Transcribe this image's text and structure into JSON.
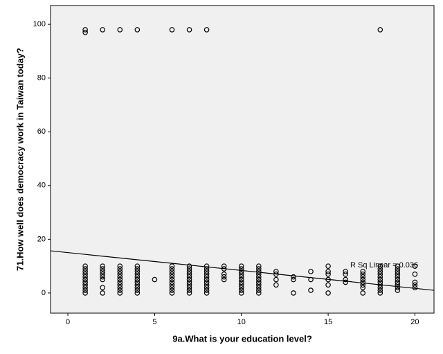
{
  "chart_data": {
    "type": "scatter",
    "x_label": "9a.What is your education level?",
    "y_label": "71.How well does democracy work in Taiwan today?",
    "annotation": "R Sq Linear = 0.036",
    "xlim": [
      -1,
      21.1
    ],
    "ylim": [
      -7.5,
      107
    ],
    "xticks": [
      0,
      5,
      10,
      15,
      20
    ],
    "yticks": [
      0,
      20,
      40,
      60,
      80,
      100
    ],
    "grid": false,
    "color": "#000000",
    "fit_line": {
      "x": [
        -1,
        21.1
      ],
      "y": [
        15.7,
        1.0
      ]
    },
    "x": [
      1,
      1,
      1,
      1,
      1,
      1,
      1,
      1,
      1,
      1,
      1,
      1,
      1,
      2,
      2,
      2,
      2,
      2,
      2,
      2,
      2,
      2,
      3,
      3,
      3,
      3,
      3,
      3,
      3,
      3,
      3,
      3,
      3,
      3,
      4,
      4,
      4,
      4,
      4,
      4,
      4,
      4,
      4,
      4,
      4,
      4,
      5,
      6,
      6,
      6,
      6,
      6,
      6,
      6,
      6,
      6,
      6,
      6,
      6,
      7,
      7,
      7,
      7,
      7,
      7,
      7,
      7,
      7,
      7,
      7,
      7,
      8,
      8,
      8,
      8,
      8,
      8,
      8,
      8,
      8,
      8,
      8,
      8,
      9,
      9,
      9,
      9,
      9,
      10,
      10,
      10,
      10,
      10,
      10,
      10,
      10,
      10,
      10,
      10,
      11,
      11,
      11,
      11,
      11,
      11,
      11,
      11,
      11,
      11,
      11,
      12,
      12,
      12,
      12,
      13,
      13,
      13,
      14,
      14,
      14,
      15,
      15,
      15,
      15,
      15,
      15,
      16,
      16,
      16,
      16,
      17,
      17,
      17,
      17,
      17,
      17,
      17,
      17,
      18,
      18,
      18,
      18,
      18,
      18,
      18,
      18,
      18,
      18,
      18,
      18,
      19,
      19,
      19,
      19,
      19,
      19,
      19,
      19,
      19,
      19,
      20,
      20,
      20,
      20,
      20
    ],
    "y": [
      0,
      1,
      2,
      3,
      4,
      5,
      6,
      7,
      8,
      9,
      10,
      97,
      98,
      0,
      2,
      5,
      6,
      7,
      8,
      9,
      10,
      98,
      0,
      1,
      2,
      3,
      4,
      5,
      6,
      7,
      8,
      9,
      10,
      98,
      0,
      1,
      2,
      3,
      4,
      5,
      6,
      7,
      8,
      9,
      10,
      98,
      5,
      0,
      1,
      2,
      3,
      4,
      5,
      6,
      7,
      8,
      9,
      10,
      98,
      0,
      1,
      2,
      3,
      4,
      5,
      6,
      7,
      8,
      9,
      10,
      98,
      0,
      1,
      2,
      3,
      4,
      5,
      6,
      7,
      8,
      9,
      10,
      98,
      5,
      6,
      7,
      9,
      10,
      0,
      1,
      2,
      3,
      4,
      5,
      6,
      7,
      8,
      9,
      10,
      0,
      1,
      2,
      3,
      4,
      5,
      6,
      7,
      8,
      9,
      10,
      3,
      5,
      7,
      8,
      0,
      5,
      6,
      1,
      5,
      8,
      0,
      3,
      5,
      7,
      8,
      10,
      4,
      5,
      7,
      8,
      0,
      2,
      3,
      4,
      5,
      6,
      7,
      8,
      0,
      1,
      2,
      3,
      4,
      5,
      6,
      7,
      8,
      9,
      10,
      98,
      1,
      2,
      3,
      4,
      5,
      6,
      7,
      8,
      9,
      10,
      2,
      3,
      4,
      7,
      10
    ]
  }
}
